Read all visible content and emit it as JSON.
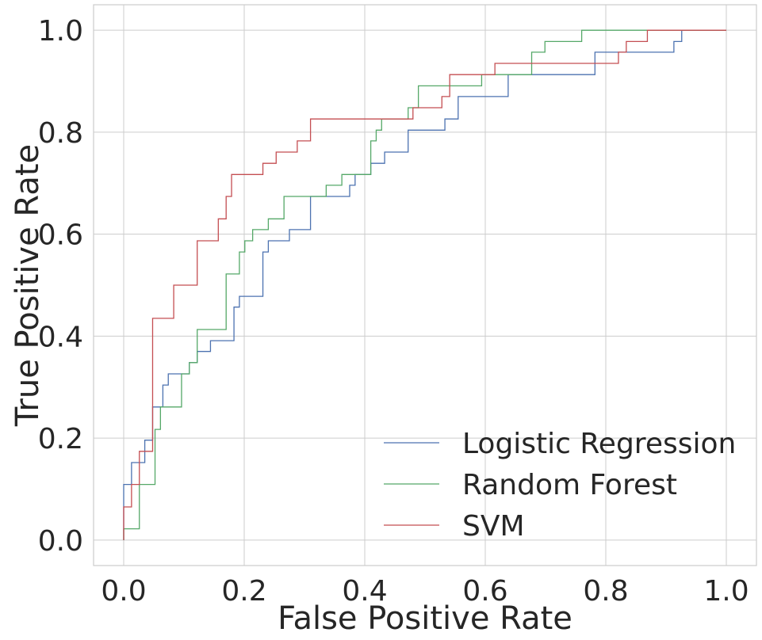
{
  "chart_data": {
    "type": "line",
    "title": "",
    "xlabel": "False Positive Rate",
    "ylabel": "True Positive Rate",
    "xlim": [
      -0.05,
      1.05
    ],
    "ylim": [
      -0.05,
      1.05
    ],
    "xticks": [
      0.0,
      0.2,
      0.4,
      0.6,
      0.8,
      1.0
    ],
    "yticks": [
      0.0,
      0.2,
      0.4,
      0.6,
      0.8,
      1.0
    ],
    "xtick_labels": [
      "0.0",
      "0.2",
      "0.4",
      "0.6",
      "0.8",
      "1.0"
    ],
    "ytick_labels": [
      "0.0",
      "0.2",
      "0.4",
      "0.6",
      "0.8",
      "1.0"
    ],
    "grid": true,
    "legend_position": "bottom-right",
    "series": [
      {
        "name": "Logistic Regression",
        "color": "#4c72b0",
        "step": true,
        "points": [
          [
            0,
            0
          ],
          [
            0,
            0.109
          ],
          [
            0.013,
            0.109
          ],
          [
            0.013,
            0.152
          ],
          [
            0.035,
            0.152
          ],
          [
            0.035,
            0.196
          ],
          [
            0.048,
            0.196
          ],
          [
            0.048,
            0.261
          ],
          [
            0.065,
            0.261
          ],
          [
            0.065,
            0.304
          ],
          [
            0.074,
            0.304
          ],
          [
            0.074,
            0.326
          ],
          [
            0.109,
            0.326
          ],
          [
            0.109,
            0.348
          ],
          [
            0.122,
            0.348
          ],
          [
            0.122,
            0.37
          ],
          [
            0.144,
            0.37
          ],
          [
            0.144,
            0.391
          ],
          [
            0.183,
            0.391
          ],
          [
            0.183,
            0.457
          ],
          [
            0.192,
            0.457
          ],
          [
            0.192,
            0.478
          ],
          [
            0.231,
            0.478
          ],
          [
            0.231,
            0.565
          ],
          [
            0.24,
            0.565
          ],
          [
            0.24,
            0.587
          ],
          [
            0.275,
            0.587
          ],
          [
            0.275,
            0.609
          ],
          [
            0.31,
            0.609
          ],
          [
            0.31,
            0.674
          ],
          [
            0.375,
            0.674
          ],
          [
            0.375,
            0.696
          ],
          [
            0.384,
            0.696
          ],
          [
            0.384,
            0.717
          ],
          [
            0.41,
            0.717
          ],
          [
            0.41,
            0.739
          ],
          [
            0.433,
            0.739
          ],
          [
            0.433,
            0.761
          ],
          [
            0.472,
            0.761
          ],
          [
            0.472,
            0.804
          ],
          [
            0.533,
            0.804
          ],
          [
            0.533,
            0.826
          ],
          [
            0.555,
            0.826
          ],
          [
            0.555,
            0.87
          ],
          [
            0.638,
            0.87
          ],
          [
            0.638,
            0.913
          ],
          [
            0.782,
            0.913
          ],
          [
            0.782,
            0.957
          ],
          [
            0.913,
            0.957
          ],
          [
            0.913,
            0.978
          ],
          [
            0.926,
            0.978
          ],
          [
            0.926,
            1.0
          ],
          [
            1.0,
            1.0
          ]
        ]
      },
      {
        "name": "Random Forest",
        "color": "#55a868",
        "step": true,
        "points": [
          [
            0,
            0
          ],
          [
            0,
            0.022
          ],
          [
            0.026,
            0.022
          ],
          [
            0.026,
            0.109
          ],
          [
            0.052,
            0.109
          ],
          [
            0.052,
            0.217
          ],
          [
            0.061,
            0.217
          ],
          [
            0.061,
            0.261
          ],
          [
            0.096,
            0.261
          ],
          [
            0.096,
            0.326
          ],
          [
            0.109,
            0.326
          ],
          [
            0.109,
            0.348
          ],
          [
            0.122,
            0.348
          ],
          [
            0.122,
            0.413
          ],
          [
            0.17,
            0.413
          ],
          [
            0.17,
            0.522
          ],
          [
            0.192,
            0.522
          ],
          [
            0.192,
            0.565
          ],
          [
            0.201,
            0.565
          ],
          [
            0.201,
            0.587
          ],
          [
            0.214,
            0.587
          ],
          [
            0.214,
            0.609
          ],
          [
            0.24,
            0.609
          ],
          [
            0.24,
            0.63
          ],
          [
            0.266,
            0.63
          ],
          [
            0.266,
            0.674
          ],
          [
            0.336,
            0.674
          ],
          [
            0.336,
            0.696
          ],
          [
            0.362,
            0.696
          ],
          [
            0.362,
            0.717
          ],
          [
            0.41,
            0.717
          ],
          [
            0.41,
            0.783
          ],
          [
            0.419,
            0.783
          ],
          [
            0.419,
            0.804
          ],
          [
            0.428,
            0.804
          ],
          [
            0.428,
            0.826
          ],
          [
            0.472,
            0.826
          ],
          [
            0.472,
            0.848
          ],
          [
            0.489,
            0.848
          ],
          [
            0.489,
            0.891
          ],
          [
            0.594,
            0.891
          ],
          [
            0.594,
            0.913
          ],
          [
            0.677,
            0.913
          ],
          [
            0.677,
            0.957
          ],
          [
            0.699,
            0.957
          ],
          [
            0.699,
            0.978
          ],
          [
            0.76,
            0.978
          ],
          [
            0.76,
            1.0
          ],
          [
            1.0,
            1.0
          ]
        ]
      },
      {
        "name": "SVM",
        "color": "#c44e52",
        "step": true,
        "points": [
          [
            0,
            0
          ],
          [
            0,
            0.065
          ],
          [
            0.013,
            0.065
          ],
          [
            0.013,
            0.109
          ],
          [
            0.026,
            0.109
          ],
          [
            0.026,
            0.174
          ],
          [
            0.048,
            0.174
          ],
          [
            0.048,
            0.435
          ],
          [
            0.083,
            0.435
          ],
          [
            0.083,
            0.5
          ],
          [
            0.122,
            0.5
          ],
          [
            0.122,
            0.587
          ],
          [
            0.157,
            0.587
          ],
          [
            0.157,
            0.63
          ],
          [
            0.17,
            0.63
          ],
          [
            0.17,
            0.674
          ],
          [
            0.179,
            0.674
          ],
          [
            0.179,
            0.717
          ],
          [
            0.231,
            0.717
          ],
          [
            0.231,
            0.739
          ],
          [
            0.253,
            0.739
          ],
          [
            0.253,
            0.761
          ],
          [
            0.288,
            0.761
          ],
          [
            0.288,
            0.783
          ],
          [
            0.31,
            0.783
          ],
          [
            0.31,
            0.826
          ],
          [
            0.48,
            0.826
          ],
          [
            0.48,
            0.848
          ],
          [
            0.528,
            0.848
          ],
          [
            0.528,
            0.87
          ],
          [
            0.541,
            0.87
          ],
          [
            0.541,
            0.913
          ],
          [
            0.616,
            0.913
          ],
          [
            0.616,
            0.935
          ],
          [
            0.821,
            0.935
          ],
          [
            0.821,
            0.957
          ],
          [
            0.834,
            0.957
          ],
          [
            0.834,
            0.978
          ],
          [
            0.869,
            0.978
          ],
          [
            0.869,
            1.0
          ],
          [
            1.0,
            1.0
          ]
        ]
      }
    ]
  }
}
